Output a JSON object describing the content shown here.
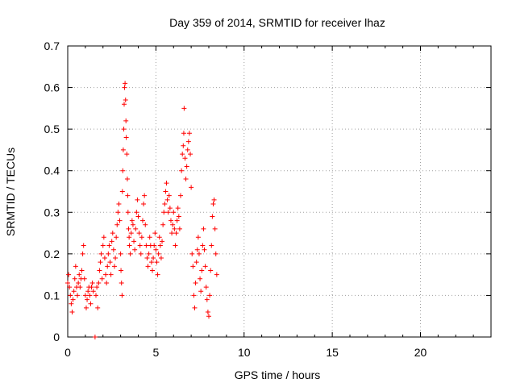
{
  "chart_data": {
    "type": "scatter",
    "title": "Day 359 of 2014, SRMTID for receiver lhaz",
    "xlabel": "GPS time / hours",
    "ylabel": "SRMTID / TECUs",
    "xlim": [
      0,
      24
    ],
    "ylim": [
      0,
      0.7
    ],
    "grid": true,
    "x_ticks": [
      0,
      5,
      10,
      15,
      20
    ],
    "x_tick_labels": [
      "0",
      "5",
      "10",
      "15",
      "20"
    ],
    "y_ticks": [
      0,
      0.1,
      0.2,
      0.3,
      0.4,
      0.5,
      0.6,
      0.7
    ],
    "y_tick_labels": [
      "0",
      "0.1",
      "0.2",
      "0.3",
      "0.4",
      "0.5",
      "0.6",
      "0.7"
    ],
    "series": [
      {
        "name": "SRMTID",
        "color": "#ff0000",
        "marker": "plus",
        "points": [
          [
            0.0,
            0.13
          ],
          [
            0.05,
            0.15
          ],
          [
            0.1,
            0.12
          ],
          [
            0.15,
            0.1
          ],
          [
            0.2,
            0.08
          ],
          [
            0.25,
            0.06
          ],
          [
            0.3,
            0.09
          ],
          [
            0.35,
            0.11
          ],
          [
            0.4,
            0.14
          ],
          [
            0.45,
            0.17
          ],
          [
            0.5,
            0.12
          ],
          [
            0.55,
            0.1
          ],
          [
            0.6,
            0.13
          ],
          [
            0.65,
            0.15
          ],
          [
            0.7,
            0.12
          ],
          [
            0.75,
            0.14
          ],
          [
            0.8,
            0.16
          ],
          [
            0.85,
            0.2
          ],
          [
            0.9,
            0.22
          ],
          [
            0.95,
            0.14
          ],
          [
            1.0,
            0.1
          ],
          [
            1.05,
            0.07
          ],
          [
            1.1,
            0.09
          ],
          [
            1.15,
            0.11
          ],
          [
            1.2,
            0.12
          ],
          [
            1.25,
            0.1
          ],
          [
            1.3,
            0.08
          ],
          [
            1.35,
            0.12
          ],
          [
            1.4,
            0.13
          ],
          [
            1.45,
            0.11
          ],
          [
            1.55,
            0.0
          ],
          [
            1.6,
            0.1
          ],
          [
            1.65,
            0.12
          ],
          [
            1.7,
            0.07
          ],
          [
            1.75,
            0.13
          ],
          [
            1.8,
            0.16
          ],
          [
            1.85,
            0.18
          ],
          [
            1.9,
            0.2
          ],
          [
            1.95,
            0.14
          ],
          [
            2.0,
            0.22
          ],
          [
            2.05,
            0.24
          ],
          [
            2.1,
            0.19
          ],
          [
            2.15,
            0.15
          ],
          [
            2.2,
            0.13
          ],
          [
            2.25,
            0.17
          ],
          [
            2.3,
            0.2
          ],
          [
            2.35,
            0.22
          ],
          [
            2.4,
            0.18
          ],
          [
            2.45,
            0.15
          ],
          [
            2.5,
            0.23
          ],
          [
            2.55,
            0.25
          ],
          [
            2.6,
            0.21
          ],
          [
            2.65,
            0.17
          ],
          [
            2.7,
            0.19
          ],
          [
            2.75,
            0.24
          ],
          [
            2.8,
            0.27
          ],
          [
            2.85,
            0.3
          ],
          [
            2.9,
            0.32
          ],
          [
            2.95,
            0.28
          ],
          [
            3.0,
            0.2
          ],
          [
            3.02,
            0.16
          ],
          [
            3.05,
            0.13
          ],
          [
            3.08,
            0.1
          ],
          [
            3.1,
            0.35
          ],
          [
            3.12,
            0.4
          ],
          [
            3.15,
            0.45
          ],
          [
            3.18,
            0.5
          ],
          [
            3.2,
            0.56
          ],
          [
            3.22,
            0.6
          ],
          [
            3.25,
            0.61
          ],
          [
            3.28,
            0.57
          ],
          [
            3.3,
            0.52
          ],
          [
            3.32,
            0.48
          ],
          [
            3.35,
            0.44
          ],
          [
            3.38,
            0.38
          ],
          [
            3.4,
            0.34
          ],
          [
            3.42,
            0.3
          ],
          [
            3.45,
            0.26
          ],
          [
            3.48,
            0.24
          ],
          [
            3.5,
            0.22
          ],
          [
            3.55,
            0.2
          ],
          [
            3.6,
            0.25
          ],
          [
            3.65,
            0.28
          ],
          [
            3.7,
            0.27
          ],
          [
            3.75,
            0.23
          ],
          [
            3.8,
            0.21
          ],
          [
            3.85,
            0.26
          ],
          [
            3.9,
            0.3
          ],
          [
            3.95,
            0.33
          ],
          [
            4.0,
            0.29
          ],
          [
            4.05,
            0.25
          ],
          [
            4.1,
            0.22
          ],
          [
            4.15,
            0.2
          ],
          [
            4.2,
            0.24
          ],
          [
            4.25,
            0.28
          ],
          [
            4.3,
            0.32
          ],
          [
            4.35,
            0.34
          ],
          [
            4.4,
            0.27
          ],
          [
            4.45,
            0.22
          ],
          [
            4.5,
            0.19
          ],
          [
            4.55,
            0.17
          ],
          [
            4.6,
            0.2
          ],
          [
            4.65,
            0.24
          ],
          [
            4.7,
            0.22
          ],
          [
            4.75,
            0.18
          ],
          [
            4.8,
            0.16
          ],
          [
            4.85,
            0.19
          ],
          [
            4.9,
            0.22
          ],
          [
            4.95,
            0.25
          ],
          [
            5.0,
            0.21
          ],
          [
            5.05,
            0.18
          ],
          [
            5.1,
            0.15
          ],
          [
            5.15,
            0.2
          ],
          [
            5.2,
            0.24
          ],
          [
            5.25,
            0.22
          ],
          [
            5.3,
            0.19
          ],
          [
            5.35,
            0.23
          ],
          [
            5.4,
            0.27
          ],
          [
            5.45,
            0.3
          ],
          [
            5.5,
            0.32
          ],
          [
            5.55,
            0.35
          ],
          [
            5.6,
            0.37
          ],
          [
            5.65,
            0.33
          ],
          [
            5.7,
            0.3
          ],
          [
            5.75,
            0.34
          ],
          [
            5.8,
            0.31
          ],
          [
            5.85,
            0.28
          ],
          [
            5.9,
            0.25
          ],
          [
            5.95,
            0.27
          ],
          [
            6.0,
            0.3
          ],
          [
            6.05,
            0.26
          ],
          [
            6.1,
            0.22
          ],
          [
            6.15,
            0.25
          ],
          [
            6.2,
            0.28
          ],
          [
            6.25,
            0.31
          ],
          [
            6.3,
            0.29
          ],
          [
            6.35,
            0.26
          ],
          [
            6.4,
            0.34
          ],
          [
            6.45,
            0.4
          ],
          [
            6.5,
            0.44
          ],
          [
            6.55,
            0.46
          ],
          [
            6.58,
            0.49
          ],
          [
            6.6,
            0.55
          ],
          [
            6.65,
            0.43
          ],
          [
            6.7,
            0.38
          ],
          [
            6.75,
            0.41
          ],
          [
            6.8,
            0.45
          ],
          [
            6.85,
            0.47
          ],
          [
            6.9,
            0.49
          ],
          [
            6.95,
            0.44
          ],
          [
            7.0,
            0.36
          ],
          [
            7.05,
            0.2
          ],
          [
            7.1,
            0.17
          ],
          [
            7.15,
            0.1
          ],
          [
            7.2,
            0.07
          ],
          [
            7.25,
            0.13
          ],
          [
            7.3,
            0.18
          ],
          [
            7.35,
            0.21
          ],
          [
            7.4,
            0.24
          ],
          [
            7.45,
            0.2
          ],
          [
            7.5,
            0.14
          ],
          [
            7.55,
            0.11
          ],
          [
            7.6,
            0.16
          ],
          [
            7.65,
            0.22
          ],
          [
            7.7,
            0.26
          ],
          [
            7.75,
            0.21
          ],
          [
            7.8,
            0.17
          ],
          [
            7.85,
            0.12
          ],
          [
            7.9,
            0.09
          ],
          [
            7.95,
            0.06
          ],
          [
            8.0,
            0.05
          ],
          [
            8.05,
            0.1
          ],
          [
            8.1,
            0.16
          ],
          [
            8.15,
            0.22
          ],
          [
            8.2,
            0.29
          ],
          [
            8.25,
            0.32
          ],
          [
            8.3,
            0.33
          ],
          [
            8.35,
            0.26
          ],
          [
            8.4,
            0.2
          ],
          [
            8.45,
            0.15
          ]
        ]
      }
    ]
  }
}
